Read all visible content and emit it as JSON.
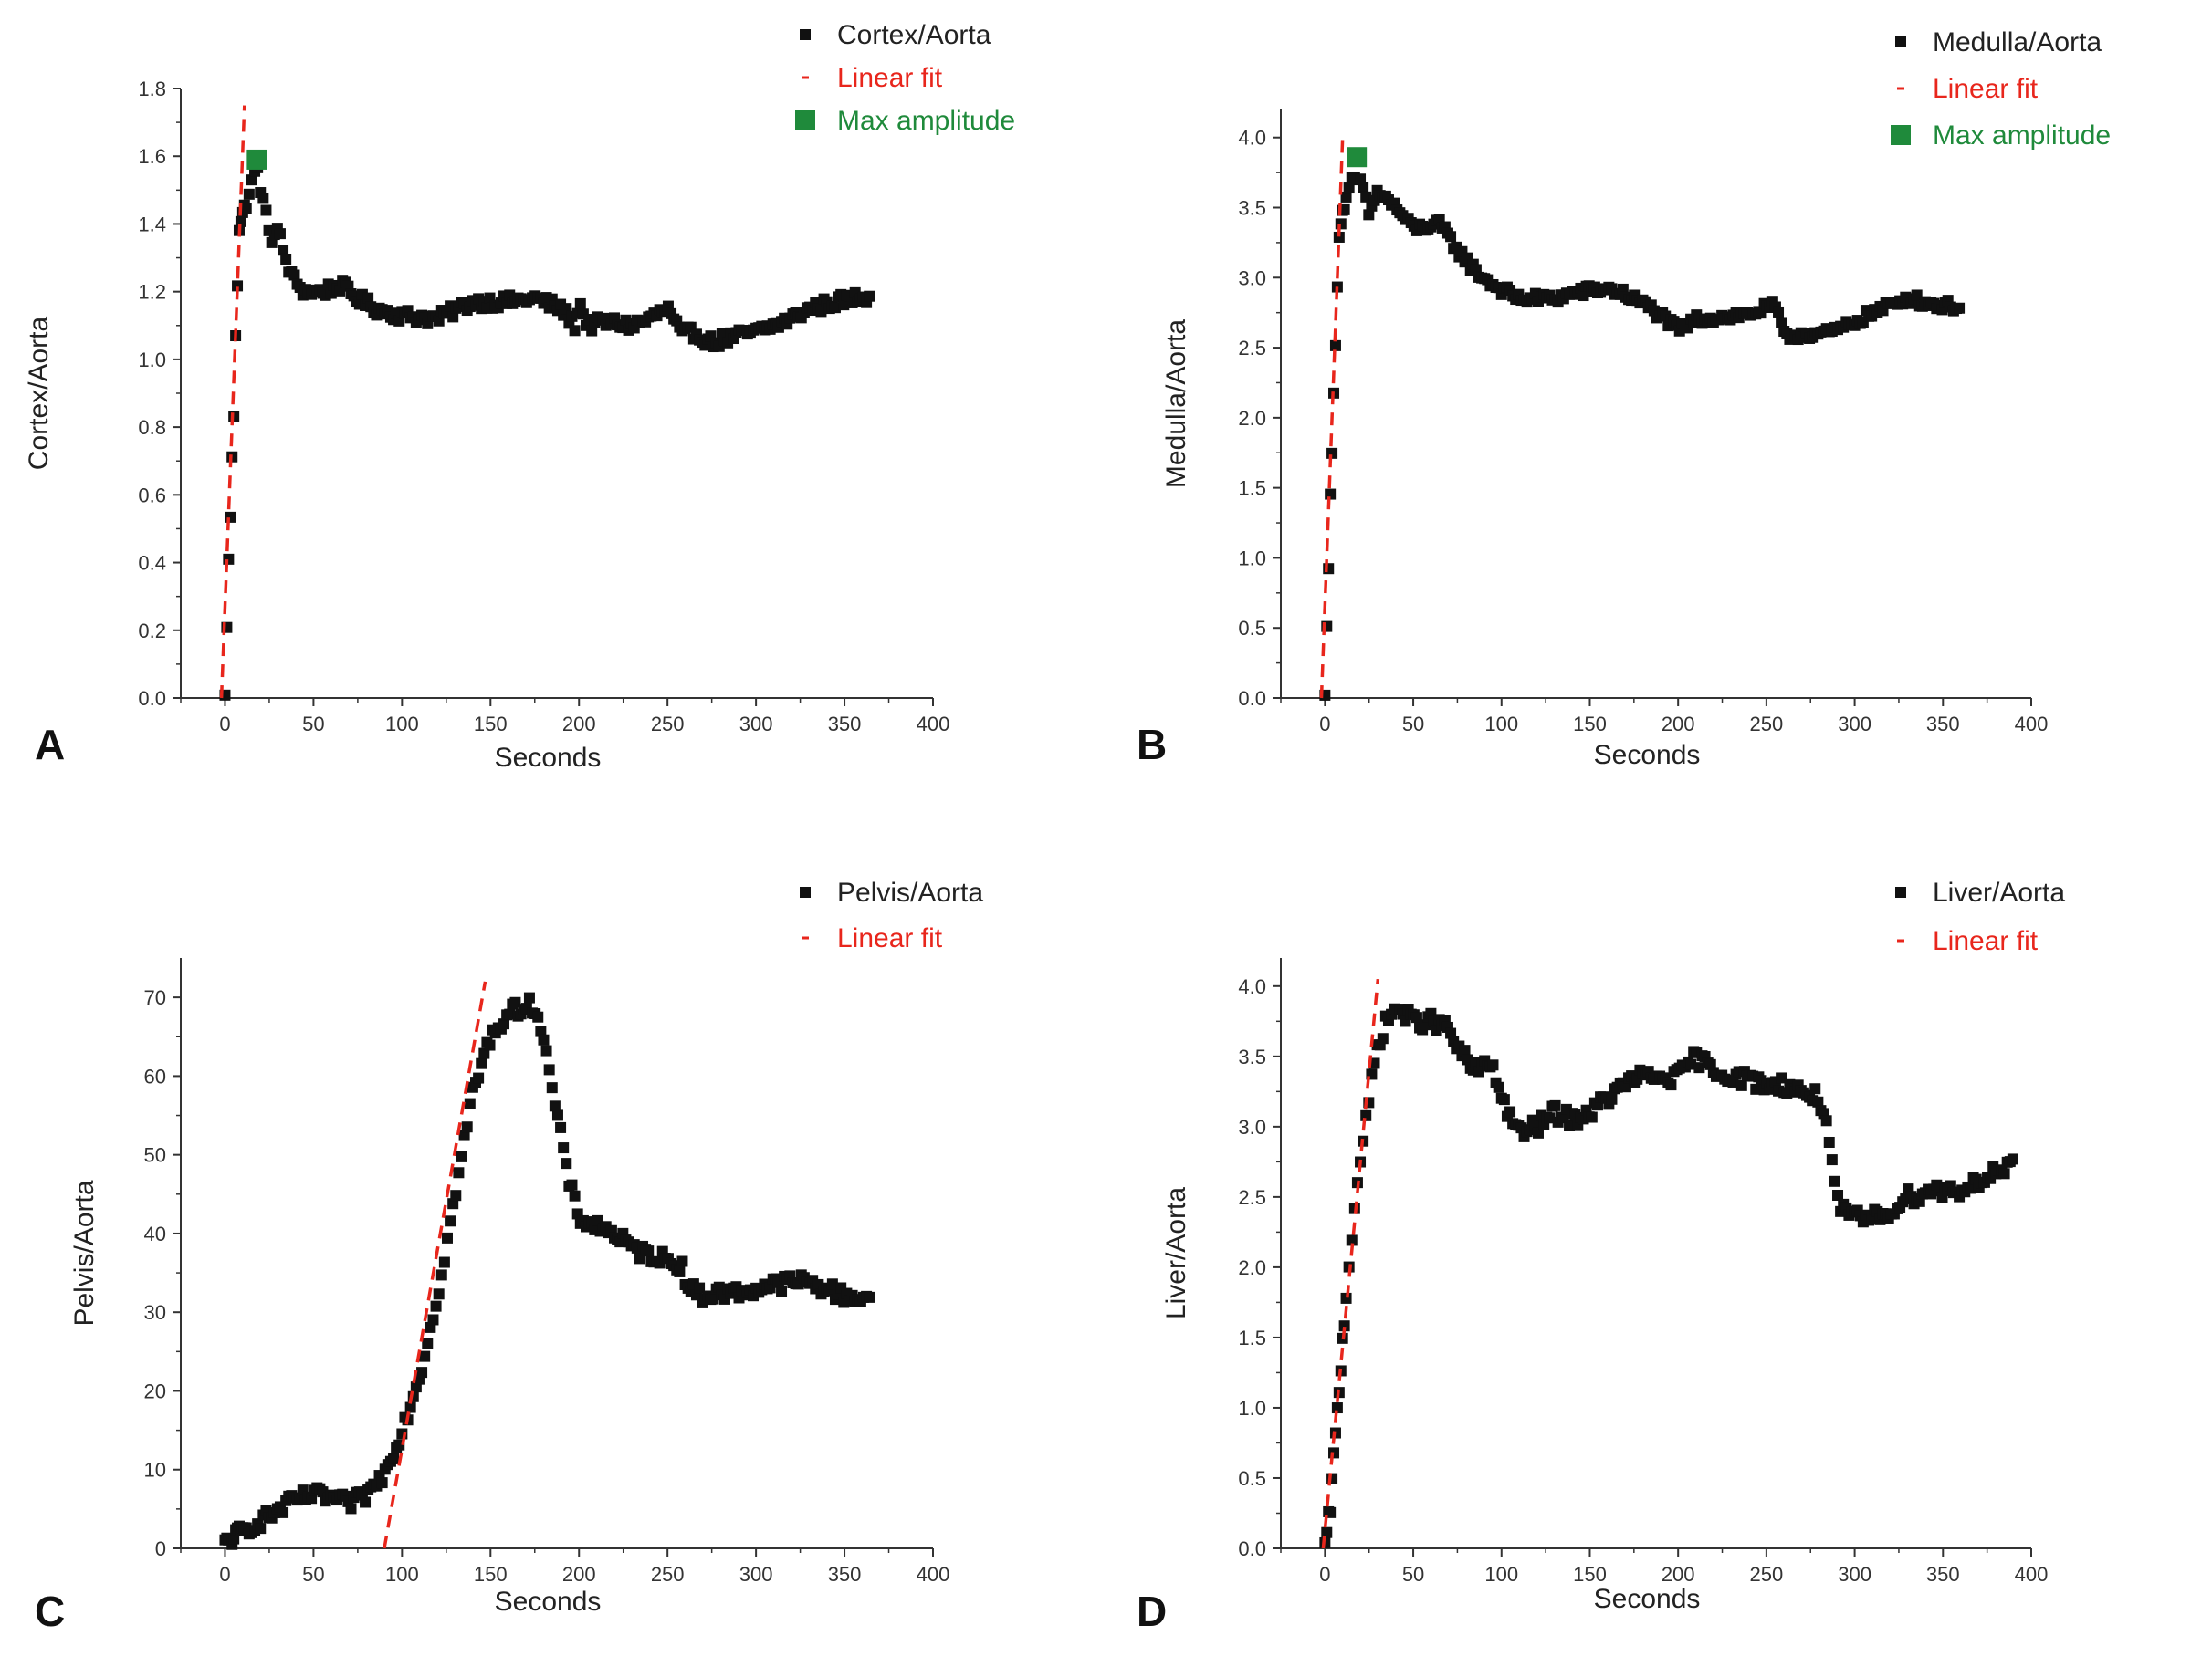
{
  "colors": {
    "data": "#111111",
    "fit": "#e8261c",
    "max": "#1f8a3b",
    "axis": "#333333"
  },
  "chart_data": [
    {
      "panel": "A",
      "type": "scatter",
      "xlabel": "Seconds",
      "ylabel": "Cortex/Aorta",
      "xlim": [
        -25,
        400
      ],
      "ylim": [
        0,
        1.8
      ],
      "xticks": [
        0,
        50,
        100,
        150,
        200,
        250,
        300,
        350,
        400
      ],
      "xtick_labels": [
        "0",
        "50",
        "100",
        "150",
        "200",
        "250",
        "300",
        "350",
        "400"
      ],
      "yticks": [
        0,
        0.2,
        0.4,
        0.6,
        0.8,
        1.0,
        1.2,
        1.4,
        1.6,
        1.8
      ],
      "ytick_labels": [
        "0.0",
        "0.2",
        "0.4",
        "0.6",
        "0.8",
        "1.0",
        "1.2",
        "1.4",
        "1.6",
        "1.8"
      ],
      "legend": {
        "data": "Cortex/Aorta",
        "fit": "Linear fit",
        "max": "Max amplitude"
      },
      "legend_position": "top-right",
      "series_key": [
        [
          0,
          0
        ],
        [
          1,
          0.22
        ],
        [
          2,
          0.4
        ],
        [
          3,
          0.54
        ],
        [
          4,
          0.7
        ],
        [
          5,
          0.84
        ],
        [
          6,
          1.08
        ],
        [
          7,
          1.23
        ],
        [
          8,
          1.39
        ],
        [
          18,
          1.57
        ],
        [
          22,
          1.45
        ],
        [
          26,
          1.36
        ],
        [
          30,
          1.38
        ],
        [
          34,
          1.3
        ],
        [
          38,
          1.24
        ],
        [
          45,
          1.2
        ],
        [
          55,
          1.2
        ],
        [
          65,
          1.22
        ],
        [
          75,
          1.18
        ],
        [
          85,
          1.15
        ],
        [
          100,
          1.13
        ],
        [
          120,
          1.12
        ],
        [
          140,
          1.17
        ],
        [
          160,
          1.17
        ],
        [
          175,
          1.18
        ],
        [
          190,
          1.15
        ],
        [
          198,
          1.1
        ],
        [
          200,
          1.17
        ],
        [
          205,
          1.1
        ],
        [
          215,
          1.11
        ],
        [
          230,
          1.1
        ],
        [
          240,
          1.12
        ],
        [
          250,
          1.15
        ],
        [
          258,
          1.07
        ],
        [
          265,
          1.08
        ],
        [
          275,
          1.05
        ],
        [
          290,
          1.07
        ],
        [
          300,
          1.08
        ],
        [
          310,
          1.1
        ],
        [
          320,
          1.12
        ],
        [
          330,
          1.15
        ],
        [
          345,
          1.17
        ],
        [
          355,
          1.18
        ],
        [
          365,
          1.19
        ]
      ],
      "series_noise": 0.02,
      "fit": {
        "x": [
          -2,
          11
        ],
        "y": [
          0,
          1.75
        ]
      },
      "max_point": [
        18,
        1.59
      ]
    },
    {
      "panel": "B",
      "type": "scatter",
      "xlabel": "Seconds",
      "ylabel": "Medulla/Aorta",
      "xlim": [
        -25,
        400
      ],
      "ylim": [
        0,
        4.2
      ],
      "xticks": [
        0,
        50,
        100,
        150,
        200,
        250,
        300,
        350,
        400
      ],
      "xtick_labels": [
        "0",
        "50",
        "100",
        "150",
        "200",
        "250",
        "300",
        "350",
        "400"
      ],
      "yticks": [
        0,
        0.5,
        1.0,
        1.5,
        2.0,
        2.5,
        3.0,
        3.5,
        4.0
      ],
      "ytick_labels": [
        "0.0",
        "0.5",
        "1.0",
        "1.5",
        "2.0",
        "2.5",
        "3.0",
        "3.5",
        "4.0"
      ],
      "legend": {
        "data": "Medulla/Aorta",
        "fit": "Linear fit",
        "max": "Max amplitude"
      },
      "legend_position": "top-right",
      "series_key": [
        [
          0,
          0
        ],
        [
          1,
          0.55
        ],
        [
          2,
          0.95
        ],
        [
          3,
          1.42
        ],
        [
          4,
          1.75
        ],
        [
          5,
          2.15
        ],
        [
          6,
          2.55
        ],
        [
          7,
          2.97
        ],
        [
          8,
          3.28
        ],
        [
          9,
          3.42
        ],
        [
          15,
          3.68
        ],
        [
          20,
          3.7
        ],
        [
          25,
          3.45
        ],
        [
          30,
          3.62
        ],
        [
          40,
          3.5
        ],
        [
          50,
          3.35
        ],
        [
          65,
          3.38
        ],
        [
          75,
          3.2
        ],
        [
          85,
          3.05
        ],
        [
          95,
          2.95
        ],
        [
          110,
          2.85
        ],
        [
          130,
          2.85
        ],
        [
          145,
          2.9
        ],
        [
          160,
          2.92
        ],
        [
          170,
          2.88
        ],
        [
          185,
          2.78
        ],
        [
          195,
          2.68
        ],
        [
          200,
          2.62
        ],
        [
          210,
          2.7
        ],
        [
          225,
          2.72
        ],
        [
          240,
          2.74
        ],
        [
          255,
          2.8
        ],
        [
          260,
          2.58
        ],
        [
          270,
          2.6
        ],
        [
          285,
          2.6
        ],
        [
          295,
          2.65
        ],
        [
          305,
          2.72
        ],
        [
          320,
          2.8
        ],
        [
          330,
          2.86
        ],
        [
          340,
          2.82
        ],
        [
          350,
          2.8
        ],
        [
          360,
          2.8
        ]
      ],
      "series_noise": 0.04,
      "fit": {
        "x": [
          -2,
          10
        ],
        "y": [
          0,
          4.0
        ]
      },
      "max_point": [
        18,
        3.86
      ]
    },
    {
      "panel": "C",
      "type": "scatter",
      "xlabel": "Seconds",
      "ylabel": "Pelvis/Aorta",
      "xlim": [
        -25,
        400
      ],
      "ylim": [
        0,
        75
      ],
      "xticks": [
        0,
        50,
        100,
        150,
        200,
        250,
        300,
        350,
        400
      ],
      "xtick_labels": [
        "0",
        "50",
        "100",
        "150",
        "200",
        "250",
        "300",
        "350",
        "400"
      ],
      "yticks": [
        0,
        10,
        20,
        30,
        40,
        50,
        60,
        70
      ],
      "ytick_labels": [
        "0",
        "10",
        "20",
        "30",
        "40",
        "50",
        "60",
        "70"
      ],
      "legend": {
        "data": "Pelvis/Aorta",
        "fit": "Linear fit"
      },
      "legend_position": "top-right",
      "series_key": [
        [
          0,
          0.5
        ],
        [
          5,
          1.5
        ],
        [
          10,
          2.2
        ],
        [
          20,
          3.5
        ],
        [
          30,
          4.8
        ],
        [
          40,
          6.2
        ],
        [
          50,
          6.8
        ],
        [
          60,
          6.4
        ],
        [
          70,
          5.6
        ],
        [
          80,
          6.8
        ],
        [
          90,
          9.5
        ],
        [
          100,
          15
        ],
        [
          110,
          22
        ],
        [
          120,
          32
        ],
        [
          130,
          45
        ],
        [
          140,
          58
        ],
        [
          150,
          65
        ],
        [
          160,
          68
        ],
        [
          170,
          69
        ],
        [
          175,
          69
        ],
        [
          180,
          65
        ],
        [
          185,
          58
        ],
        [
          190,
          52
        ],
        [
          195,
          46
        ],
        [
          200,
          42
        ],
        [
          210,
          41
        ],
        [
          220,
          40
        ],
        [
          230,
          38
        ],
        [
          245,
          37
        ],
        [
          258,
          36
        ],
        [
          262,
          33
        ],
        [
          270,
          32
        ],
        [
          280,
          32.5
        ],
        [
          290,
          32.5
        ],
        [
          300,
          33
        ],
        [
          310,
          33.5
        ],
        [
          325,
          34
        ],
        [
          340,
          33
        ],
        [
          350,
          32
        ],
        [
          365,
          32
        ]
      ],
      "series_noise": 1.0,
      "fit": {
        "x": [
          90,
          147
        ],
        "y": [
          0,
          72
        ]
      }
    },
    {
      "panel": "D",
      "type": "scatter",
      "xlabel": "Seconds",
      "ylabel": "Liver/Aorta",
      "xlim": [
        -25,
        400
      ],
      "ylim": [
        0,
        4.2
      ],
      "xticks": [
        0,
        50,
        100,
        150,
        200,
        250,
        300,
        350,
        400
      ],
      "xtick_labels": [
        "0",
        "50",
        "100",
        "150",
        "200",
        "250",
        "300",
        "350",
        "400"
      ],
      "yticks": [
        0,
        0.5,
        1.0,
        1.5,
        2.0,
        2.5,
        3.0,
        3.5,
        4.0
      ],
      "ytick_labels": [
        "0.0",
        "0.5",
        "1.0",
        "1.5",
        "2.0",
        "2.5",
        "3.0",
        "3.5",
        "4.0"
      ],
      "legend": {
        "data": "Liver/Aorta",
        "fit": "Linear fit"
      },
      "legend_position": "top-right",
      "series_key": [
        [
          0,
          0
        ],
        [
          3,
          0.3
        ],
        [
          6,
          0.8
        ],
        [
          9,
          1.3
        ],
        [
          12,
          1.8
        ],
        [
          15,
          2.2
        ],
        [
          18,
          2.6
        ],
        [
          22,
          2.9
        ],
        [
          26,
          3.3
        ],
        [
          30,
          3.6
        ],
        [
          35,
          3.75
        ],
        [
          40,
          3.85
        ],
        [
          50,
          3.75
        ],
        [
          60,
          3.75
        ],
        [
          70,
          3.7
        ],
        [
          75,
          3.55
        ],
        [
          85,
          3.4
        ],
        [
          95,
          3.45
        ],
        [
          100,
          3.2
        ],
        [
          110,
          2.95
        ],
        [
          120,
          3.0
        ],
        [
          130,
          3.1
        ],
        [
          140,
          3.05
        ],
        [
          150,
          3.1
        ],
        [
          160,
          3.2
        ],
        [
          175,
          3.35
        ],
        [
          190,
          3.35
        ],
        [
          200,
          3.35
        ],
        [
          210,
          3.5
        ],
        [
          220,
          3.4
        ],
        [
          235,
          3.35
        ],
        [
          250,
          3.3
        ],
        [
          260,
          3.3
        ],
        [
          270,
          3.25
        ],
        [
          280,
          3.2
        ],
        [
          285,
          3.0
        ],
        [
          288,
          2.6
        ],
        [
          292,
          2.4
        ],
        [
          300,
          2.35
        ],
        [
          310,
          2.35
        ],
        [
          320,
          2.4
        ],
        [
          330,
          2.5
        ],
        [
          345,
          2.55
        ],
        [
          360,
          2.55
        ],
        [
          375,
          2.65
        ],
        [
          390,
          2.72
        ]
      ],
      "series_noise": 0.06,
      "fit": {
        "x": [
          -1,
          30
        ],
        "y": [
          0,
          4.05
        ]
      }
    }
  ]
}
